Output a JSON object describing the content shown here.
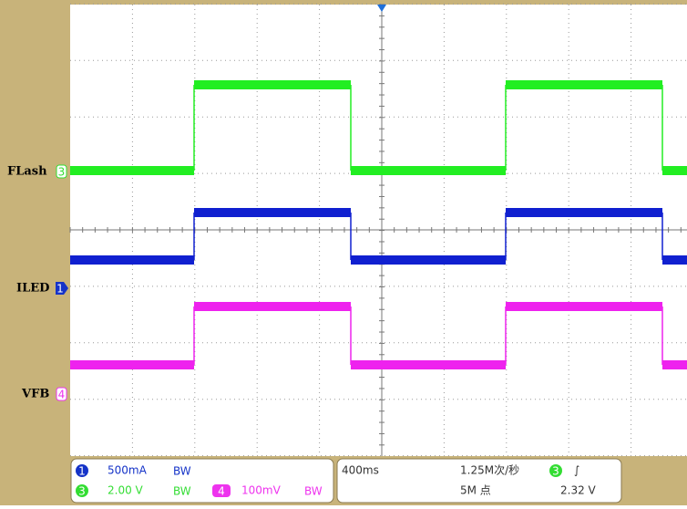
{
  "channels": [
    {
      "label": "FLash",
      "marker": "3"
    },
    {
      "label": "ILED",
      "marker": "1"
    },
    {
      "label": "VFB",
      "marker": "4"
    }
  ],
  "status": {
    "ch1": {
      "marker": "1",
      "scale": "500mA",
      "bw": "BW"
    },
    "ch3": {
      "marker": "3",
      "scale": "2.00 V",
      "bw": "BW"
    },
    "ch4": {
      "marker": "4",
      "scale": "100mV",
      "bw": "BW"
    },
    "timebase": "400ms",
    "sample_rate": "1.25M次/秒",
    "record_length": "5M 点",
    "trigger": {
      "marker": "3",
      "slope": "∫",
      "level": "2.32 V"
    }
  }
}
